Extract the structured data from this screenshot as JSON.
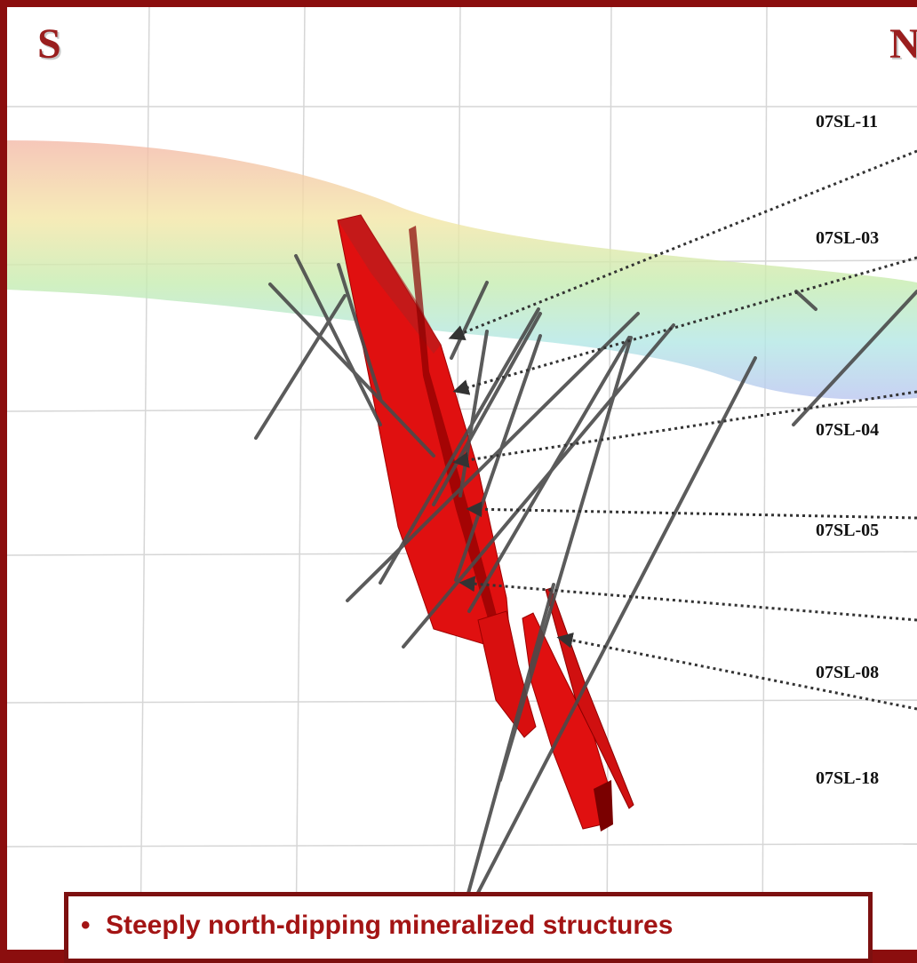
{
  "compass": {
    "south": "S",
    "north": "N"
  },
  "drill_holes": [
    {
      "id": "hole-11",
      "label": "07SL-11"
    },
    {
      "id": "hole-03",
      "label": "07SL-03"
    },
    {
      "id": "hole-04",
      "label": "07SL-04"
    },
    {
      "id": "hole-05",
      "label": "07SL-05"
    },
    {
      "id": "hole-08",
      "label": "07SL-08"
    },
    {
      "id": "hole-18",
      "label": "07SL-18"
    }
  ],
  "callout": {
    "bullet": "•",
    "text": "Steeply north-dipping mineralized structures"
  },
  "colors": {
    "frame": "#8b0e0e",
    "mineralized_body": "#e01010",
    "drill_trace": "#4a4a4a",
    "callout_text": "#a31414"
  }
}
